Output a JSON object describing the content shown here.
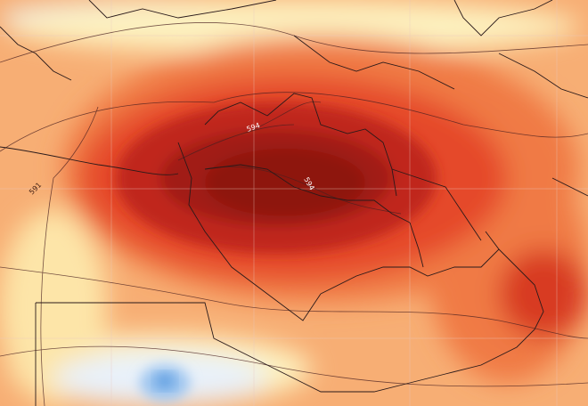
{
  "map": {
    "type": "geopotential height anomaly map",
    "contour_labels": [
      {
        "text": "594"
      },
      {
        "text": "594"
      },
      {
        "text": "591"
      }
    ],
    "colors": {
      "extreme_heat": "#8e1410",
      "strong_heat": "#c0261a",
      "heat": "#e5482a",
      "warm": "#f07a45",
      "mild": "#f7ae74",
      "slight": "#fcd796",
      "neutral": "#fdf2c0",
      "cool": "#e8f1fb",
      "cold": "#5a9be0",
      "borders": "#2a1a1a",
      "gridlines": "#e8c8c0"
    }
  }
}
